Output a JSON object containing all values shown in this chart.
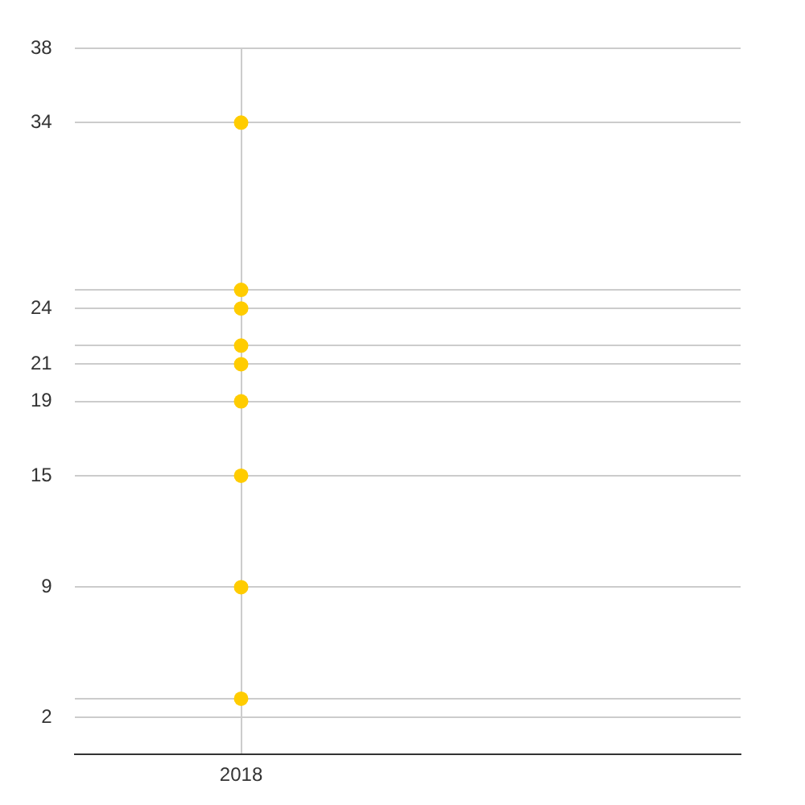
{
  "chart_data": {
    "type": "scatter",
    "categories": [
      "2018",
      null
    ],
    "series": [
      {
        "color": "#ffcc00",
        "values": [
          34,
          null
        ]
      },
      {
        "color": "#ffcc00",
        "values": [
          25,
          null
        ]
      },
      {
        "color": "#ffcc00",
        "values": [
          24,
          null
        ]
      },
      {
        "color": "#ffcc00",
        "values": [
          22,
          null
        ]
      },
      {
        "color": "#ffcc00",
        "values": [
          21,
          null
        ]
      },
      {
        "color": "#ffcc00",
        "values": [
          19,
          null
        ]
      },
      {
        "color": "#ffcc00",
        "values": [
          15,
          null
        ]
      },
      {
        "color": "#ffcc00",
        "values": [
          9,
          null
        ]
      },
      {
        "color": "#ffcc00",
        "values": [
          3,
          null
        ]
      }
    ],
    "ylim": [
      0,
      38
    ],
    "yticks": [
      38,
      34,
      {
        "value": 25,
        "label": null
      },
      24,
      {
        "value": 22,
        "label": null
      },
      21,
      19,
      15,
      9,
      {
        "value": 3,
        "label": null
      },
      2
    ],
    "grid": true,
    "marker": "circle",
    "legend": false
  }
}
